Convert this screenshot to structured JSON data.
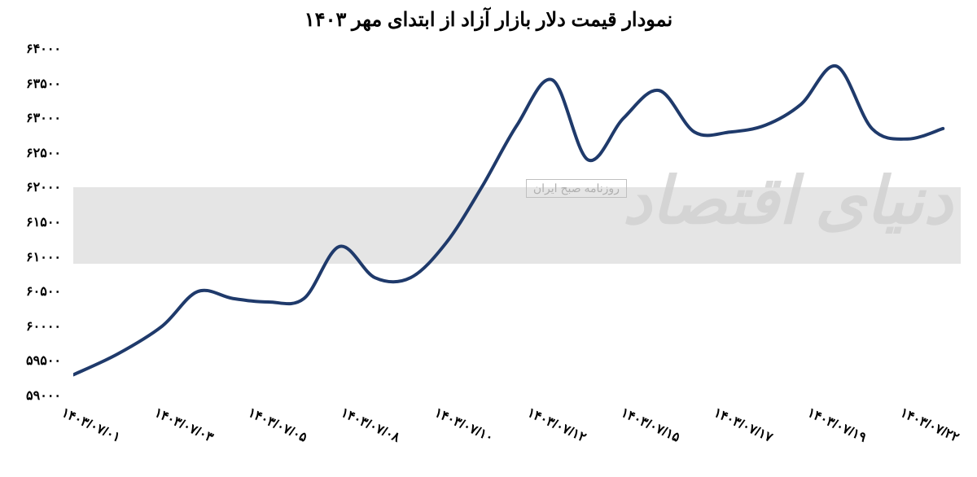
{
  "chart": {
    "type": "line",
    "title": "نمودار قیمت دلار بازار آزاد از ابتدای مهر ۱۴۰۳",
    "title_fontsize": 24,
    "title_color": "#000000",
    "background_color": "#ffffff",
    "plot_background": "#ffffff",
    "line_color": "#1f3a6b",
    "line_width": 4,
    "ylim": [
      59000,
      64000
    ],
    "ytick_step": 500,
    "yticks": [
      {
        "value": 59000,
        "label": "۵۹۰۰۰"
      },
      {
        "value": 59500,
        "label": "۵۹۵۰۰"
      },
      {
        "value": 60000,
        "label": "۶۰۰۰۰"
      },
      {
        "value": 60500,
        "label": "۶۰۵۰۰"
      },
      {
        "value": 61000,
        "label": "۶۱۰۰۰"
      },
      {
        "value": 61500,
        "label": "۶۱۵۰۰"
      },
      {
        "value": 62000,
        "label": "۶۲۰۰۰"
      },
      {
        "value": 62500,
        "label": "۶۲۵۰۰"
      },
      {
        "value": 63000,
        "label": "۶۳۰۰۰"
      },
      {
        "value": 63500,
        "label": "۶۳۵۰۰"
      },
      {
        "value": 64000,
        "label": "۶۴۰۰۰"
      }
    ],
    "xticks": [
      {
        "pos": 0.0,
        "label": "۱۴۰۳/۰۷/۰۱"
      },
      {
        "pos": 0.105,
        "label": "۱۴۰۳/۰۷/۰۳"
      },
      {
        "pos": 0.21,
        "label": "۱۴۰۳/۰۷/۰۵"
      },
      {
        "pos": 0.315,
        "label": "۱۴۰۳/۰۷/۰۸"
      },
      {
        "pos": 0.42,
        "label": "۱۴۰۳/۰۷/۱۰"
      },
      {
        "pos": 0.525,
        "label": "۱۴۰۳/۰۷/۱۲"
      },
      {
        "pos": 0.63,
        "label": "۱۴۰۳/۰۷/۱۵"
      },
      {
        "pos": 0.735,
        "label": "۱۴۰۳/۰۷/۱۷"
      },
      {
        "pos": 0.84,
        "label": "۱۴۰۳/۰۷/۱۹"
      },
      {
        "pos": 0.945,
        "label": "۱۴۰۳/۰۷/۲۲"
      }
    ],
    "series": [
      {
        "x": 0.0,
        "y": 59300
      },
      {
        "x": 0.05,
        "y": 59600
      },
      {
        "x": 0.1,
        "y": 60000
      },
      {
        "x": 0.14,
        "y": 60500
      },
      {
        "x": 0.18,
        "y": 60400
      },
      {
        "x": 0.22,
        "y": 60350
      },
      {
        "x": 0.26,
        "y": 60400
      },
      {
        "x": 0.3,
        "y": 61150
      },
      {
        "x": 0.34,
        "y": 60700
      },
      {
        "x": 0.38,
        "y": 60700
      },
      {
        "x": 0.42,
        "y": 61200
      },
      {
        "x": 0.46,
        "y": 62000
      },
      {
        "x": 0.5,
        "y": 62900
      },
      {
        "x": 0.54,
        "y": 63550
      },
      {
        "x": 0.58,
        "y": 62400
      },
      {
        "x": 0.62,
        "y": 63000
      },
      {
        "x": 0.66,
        "y": 63400
      },
      {
        "x": 0.7,
        "y": 62800
      },
      {
        "x": 0.74,
        "y": 62800
      },
      {
        "x": 0.78,
        "y": 62900
      },
      {
        "x": 0.82,
        "y": 63200
      },
      {
        "x": 0.86,
        "y": 63750
      },
      {
        "x": 0.9,
        "y": 62850
      },
      {
        "x": 0.94,
        "y": 62700
      },
      {
        "x": 0.98,
        "y": 62850
      }
    ],
    "watermark": {
      "band_color": "#e5e5e5",
      "band_top": 0.4,
      "band_height": 0.22,
      "text_main": "دنیای اقتصاد",
      "text_sub": "روزنامه صبح ایران",
      "text_color": "#d0d0d0",
      "sub_color": "#b0b0b0"
    },
    "axis_font_size": 16,
    "axis_font_weight": "bold",
    "axis_color": "#000000"
  }
}
